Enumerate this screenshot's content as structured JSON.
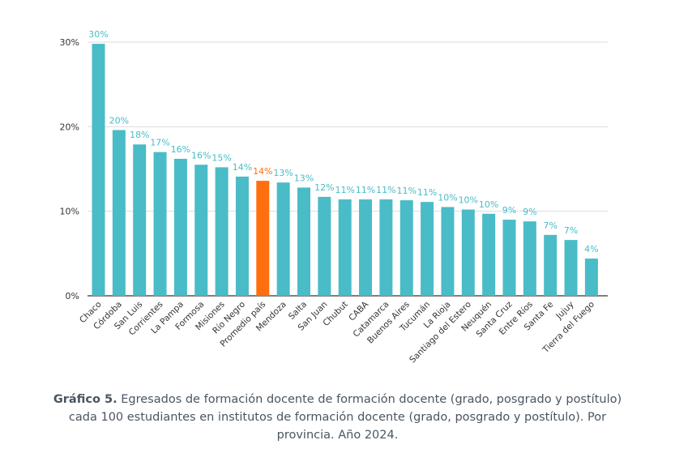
{
  "chart_data": {
    "type": "bar",
    "categories": [
      "Chaco",
      "Córdoba",
      "San Luis",
      "Corrientes",
      "La Pampa",
      "Formosa",
      "Misiones",
      "Río Negro",
      "Promedio país",
      "Mendoza",
      "Salta",
      "San Juan",
      "Chubut",
      "CABA",
      "Catamarca",
      "Buenos Aires",
      "Tucumán",
      "La Rioja",
      "Santiago del Estero",
      "Neuquén",
      "Santa Cruz",
      "Entre Ríos",
      "Santa Fe",
      "Jujuy",
      "Tierra del Fuego"
    ],
    "values": [
      29.8,
      19.6,
      17.9,
      17.0,
      16.2,
      15.5,
      15.2,
      14.1,
      13.6,
      13.4,
      12.8,
      11.7,
      11.4,
      11.4,
      11.4,
      11.3,
      11.1,
      10.5,
      10.2,
      9.7,
      9.0,
      8.8,
      7.2,
      6.6,
      4.4
    ],
    "value_labels": [
      "30%",
      "20%",
      "18%",
      "17%",
      "16%",
      "16%",
      "15%",
      "14%",
      "14%",
      "13%",
      "13%",
      "12%",
      "11%",
      "11%",
      "11%",
      "11%",
      "11%",
      "10%",
      "10%",
      "10%",
      "9%",
      "9%",
      "7%",
      "7%",
      "4%"
    ],
    "y_ticks": [
      "0%",
      "10%",
      "20%",
      "30%"
    ],
    "ylim": [
      0,
      30
    ],
    "highlight_index": 8,
    "colors": {
      "bar": "#49BCC7",
      "highlight": "#FF6F0F",
      "label": "#49BCC7",
      "highlight_label": "#FF6F0F"
    },
    "grid": true,
    "title": "",
    "xlabel": "",
    "ylabel": ""
  },
  "caption": {
    "label": "Gráfico 5.",
    "text": " Egresados de formación docente de formación docente (grado, posgrado y postítulo) cada 100 estudiantes en institutos de formación docente (grado, posgrado y postítulo). Por provincia. Año 2024."
  }
}
